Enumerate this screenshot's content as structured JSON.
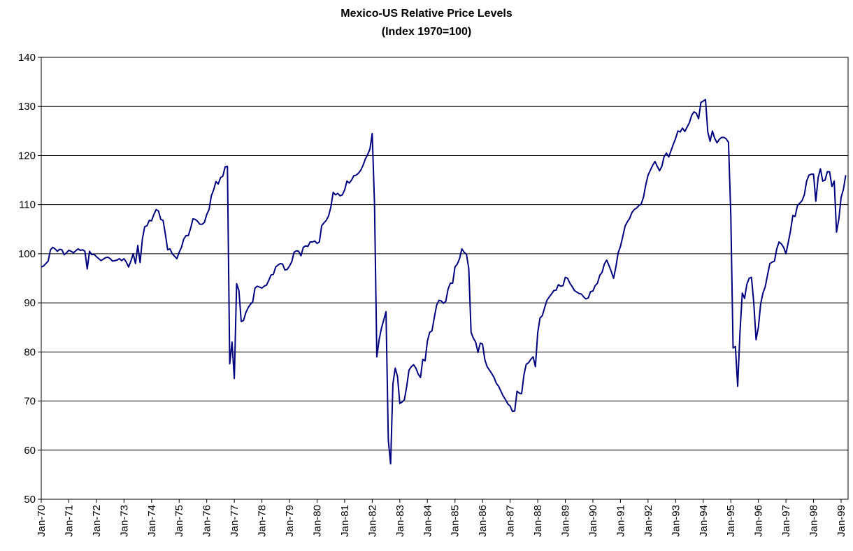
{
  "chart_data": {
    "type": "line",
    "title": "Mexico-US Relative Price Levels",
    "subtitle": "(Index 1970=100)",
    "categories": [
      "Jan-70",
      null,
      null,
      null,
      null,
      null,
      null,
      null,
      null,
      null,
      null,
      null,
      "Jan-71",
      null,
      null,
      null,
      null,
      null,
      null,
      null,
      null,
      null,
      null,
      null,
      "Jan-72",
      null,
      null,
      null,
      null,
      null,
      null,
      null,
      null,
      null,
      null,
      null,
      "Jan-73",
      null,
      null,
      null,
      null,
      null,
      null,
      null,
      null,
      null,
      null,
      null,
      "Jan-74",
      null,
      null,
      null,
      null,
      null,
      null,
      null,
      null,
      null,
      null,
      null,
      "Jan-75",
      null,
      null,
      null,
      null,
      null,
      null,
      null,
      null,
      null,
      null,
      null,
      "Jan-76",
      null,
      null,
      null,
      null,
      null,
      null,
      null,
      null,
      null,
      null,
      null,
      "Jan-77",
      null,
      null,
      null,
      null,
      null,
      null,
      null,
      null,
      null,
      null,
      null,
      "Jan-78",
      null,
      null,
      null,
      null,
      null,
      null,
      null,
      null,
      null,
      null,
      null,
      "Jan-79",
      null,
      null,
      null,
      null,
      null,
      null,
      null,
      null,
      null,
      null,
      null,
      "Jan-80",
      null,
      null,
      null,
      null,
      null,
      null,
      null,
      null,
      null,
      null,
      null,
      "Jan-81",
      null,
      null,
      null,
      null,
      null,
      null,
      null,
      null,
      null,
      null,
      null,
      "Jan-82",
      null,
      null,
      null,
      null,
      null,
      null,
      null,
      null,
      null,
      null,
      null,
      "Jan-83",
      null,
      null,
      null,
      null,
      null,
      null,
      null,
      null,
      null,
      null,
      null,
      "Jan-84",
      null,
      null,
      null,
      null,
      null,
      null,
      null,
      null,
      null,
      null,
      null,
      "Jan-85",
      null,
      null,
      null,
      null,
      null,
      null,
      null,
      null,
      null,
      null,
      null,
      "Jan-86",
      null,
      null,
      null,
      null,
      null,
      null,
      null,
      null,
      null,
      null,
      null,
      "Jan-87",
      null,
      null,
      null,
      null,
      null,
      null,
      null,
      null,
      null,
      null,
      null,
      "Jan-88",
      null,
      null,
      null,
      null,
      null,
      null,
      null,
      null,
      null,
      null,
      null,
      "Jan-89",
      null,
      null,
      null,
      null,
      null,
      null,
      null,
      null,
      null,
      null,
      null,
      "Jan-90",
      null,
      null,
      null,
      null,
      null,
      null,
      null,
      null,
      null,
      null,
      null,
      "Jan-91",
      null,
      null,
      null,
      null,
      null,
      null,
      null,
      null,
      null,
      null,
      null,
      "Jan-92",
      null,
      null,
      null,
      null,
      null,
      null,
      null,
      null,
      null,
      null,
      null,
      "Jan-93",
      null,
      null,
      null,
      null,
      null,
      null,
      null,
      null,
      null,
      null,
      null,
      "Jan-94",
      null,
      null,
      null,
      null,
      null,
      null,
      null,
      null,
      null,
      null,
      null,
      "Jan-95",
      null,
      null,
      null,
      null,
      null,
      null,
      null,
      null,
      null,
      null,
      null,
      "Jan-96",
      null,
      null,
      null,
      null,
      null,
      null,
      null,
      null,
      null,
      null,
      null,
      "Jan-97",
      null,
      null,
      null,
      null,
      null,
      null,
      null,
      null,
      null,
      null,
      null,
      "Jan-98",
      null,
      null,
      null,
      null,
      null,
      null,
      null,
      null,
      null,
      null,
      null,
      "Jan-99",
      null,
      null
    ],
    "series": [
      {
        "name": "Mexico-US Relative Price Levels",
        "color": "#000080",
        "values": [
          97.3,
          97.5,
          98,
          98.5,
          100.8,
          101.3,
          101,
          100.5,
          100.9,
          100.8,
          99.8,
          100.2,
          100.7,
          100.5,
          100.2,
          100.6,
          101,
          100.7,
          100.8,
          100.5,
          96.9,
          100.5,
          99.8,
          99.9,
          99.4,
          99,
          98.6,
          98.9,
          99.2,
          99.3,
          99,
          98.5,
          98.6,
          98.7,
          99,
          98.6,
          99,
          98.3,
          97.3,
          98.5,
          100,
          98,
          101.7,
          98.2,
          103,
          105.5,
          105.7,
          106.8,
          106.7,
          108,
          109,
          108.7,
          107,
          106.8,
          104,
          100.8,
          101,
          100,
          99.5,
          99,
          100.3,
          101.3,
          103,
          103.7,
          103.7,
          105.2,
          107.1,
          107,
          106.6,
          106,
          106,
          106.4,
          108,
          109,
          111.8,
          113,
          114.7,
          114.2,
          115.5,
          115.8,
          117.7,
          117.8,
          77.6,
          82,
          74.6,
          93.9,
          92.5,
          86.2,
          86.4,
          88,
          89,
          89.7,
          90.2,
          93,
          93.4,
          93.2,
          93,
          93.4,
          93.6,
          94.6,
          95.7,
          95.8,
          97.3,
          97.7,
          98,
          97.9,
          96.7,
          96.8,
          97.5,
          98.4,
          100.3,
          100.6,
          100.5,
          99.6,
          101.3,
          101.6,
          101.5,
          102.4,
          102.4,
          102.6,
          102.1,
          102.4,
          105.7,
          106.3,
          106.8,
          107.7,
          109.5,
          112.5,
          112,
          112.3,
          111.8,
          112,
          113,
          114.8,
          114.4,
          115,
          115.9,
          116,
          116.4,
          117,
          118,
          119.3,
          120.2,
          121.3,
          124.5,
          110,
          79,
          82.5,
          84.8,
          86.5,
          88.2,
          62,
          57.2,
          73.5,
          76.7,
          75,
          69.5,
          69.8,
          70.3,
          73,
          76.3,
          77,
          77.4,
          76.7,
          75.5,
          74.8,
          78.5,
          78.2,
          82.2,
          84,
          84.3,
          87,
          89.5,
          90.5,
          90.4,
          89.9,
          90.3,
          92.8,
          94,
          94,
          97.3,
          97.9,
          99,
          101,
          100.3,
          99.9,
          97,
          84,
          82.8,
          82,
          79.9,
          81.8,
          81.6,
          78.4,
          77,
          76.3,
          75.6,
          74.8,
          73.6,
          73,
          72,
          71,
          70.3,
          69.4,
          69,
          67.9,
          68,
          72,
          71.6,
          71.5,
          75.3,
          77.5,
          77.8,
          78.5,
          79,
          77,
          83.9,
          86.9,
          87.4,
          89,
          90.5,
          91.2,
          91.8,
          92.5,
          92.6,
          93.7,
          93.4,
          93.5,
          95.2,
          95,
          94,
          93.3,
          92.5,
          92.2,
          91.9,
          91.8,
          91.2,
          90.8,
          91,
          92.3,
          92.4,
          93.5,
          94,
          95.6,
          96.2,
          97.9,
          98.7,
          97.6,
          96.4,
          95,
          97.3,
          100.2,
          101.5,
          103.5,
          105.6,
          106.5,
          107.2,
          108.4,
          109,
          109.3,
          109.8,
          110.1,
          111.5,
          114,
          116,
          117,
          118,
          118.8,
          117.8,
          116.9,
          117.8,
          119.8,
          120.5,
          119.7,
          121,
          122.3,
          123.5,
          125,
          124.8,
          125.6,
          124.9,
          125.8,
          126.7,
          128.2,
          128.9,
          128.6,
          127.5,
          130.8,
          131.1,
          131.4,
          124.8,
          122.9,
          125,
          123.5,
          122.6,
          123.3,
          123.7,
          123.7,
          123.4,
          122.7,
          108,
          80.8,
          81.1,
          73,
          84,
          92,
          90.9,
          93.8,
          95,
          95.2,
          90,
          82.5,
          85,
          89.8,
          92,
          93.3,
          95.7,
          98,
          98.3,
          98.5,
          101,
          102.4,
          102,
          101.3,
          100,
          102.3,
          104.7,
          107.8,
          107.6,
          109.8,
          110.3,
          110.8,
          112,
          114.8,
          116,
          116.2,
          116.2,
          110.7,
          115.5,
          117.3,
          114.8,
          115,
          116.7,
          116.7,
          113.7,
          114.8,
          104.4,
          107,
          111.5,
          113.1,
          116
        ]
      }
    ],
    "ylim": [
      50,
      140
    ],
    "yticks": [
      50,
      60,
      70,
      80,
      90,
      100,
      110,
      120,
      130,
      140
    ],
    "grid": true
  }
}
